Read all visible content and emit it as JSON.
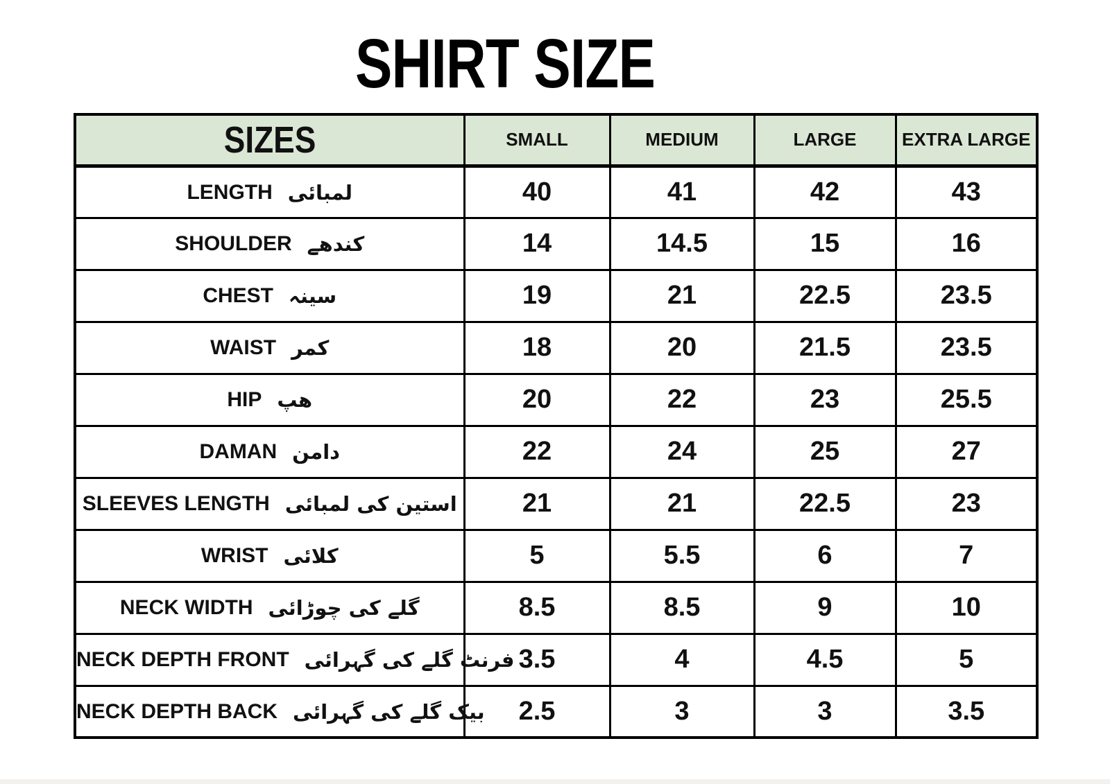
{
  "title": "SHIRT SIZE",
  "colors": {
    "header_bg": "#dbe7d5",
    "border": "#000000",
    "text": "#111111",
    "page_bg": "#ffffff"
  },
  "table": {
    "corner_label": "SIZES",
    "columns": [
      "SMALL",
      "MEDIUM",
      "LARGE",
      "EXTRA LARGE"
    ],
    "rows": [
      {
        "label_en": "LENGTH",
        "label_ur": "لمبائی",
        "values": [
          "40",
          "41",
          "42",
          "43"
        ]
      },
      {
        "label_en": "SHOULDER",
        "label_ur": "کندھے",
        "values": [
          "14",
          "14.5",
          "15",
          "16"
        ]
      },
      {
        "label_en": "CHEST",
        "label_ur": "سینہ",
        "values": [
          "19",
          "21",
          "22.5",
          "23.5"
        ]
      },
      {
        "label_en": "WAIST",
        "label_ur": "کمر",
        "values": [
          "18",
          "20",
          "21.5",
          "23.5"
        ]
      },
      {
        "label_en": "HIP",
        "label_ur": "ھپ",
        "values": [
          "20",
          "22",
          "23",
          "25.5"
        ]
      },
      {
        "label_en": "DAMAN",
        "label_ur": "دامن",
        "values": [
          "22",
          "24",
          "25",
          "27"
        ]
      },
      {
        "label_en": "SLEEVES LENGTH",
        "label_ur": "استین کی لمبائی",
        "values": [
          "21",
          "21",
          "22.5",
          "23"
        ]
      },
      {
        "label_en": "WRIST",
        "label_ur": "کلائی",
        "values": [
          "5",
          "5.5",
          "6",
          "7"
        ]
      },
      {
        "label_en": "NECK WIDTH",
        "label_ur": "گلے کی چوڑائی",
        "values": [
          "8.5",
          "8.5",
          "9",
          "10"
        ]
      },
      {
        "label_en": "NECK DEPTH FRONT",
        "label_ur": "فرنٹ گلے کی گہرائی",
        "values": [
          "3.5",
          "4",
          "4.5",
          "5"
        ]
      },
      {
        "label_en": "NECK DEPTH BACK",
        "label_ur": "بیک گلے کی گہرائی",
        "values": [
          "2.5",
          "3",
          "3",
          "3.5"
        ]
      }
    ]
  }
}
